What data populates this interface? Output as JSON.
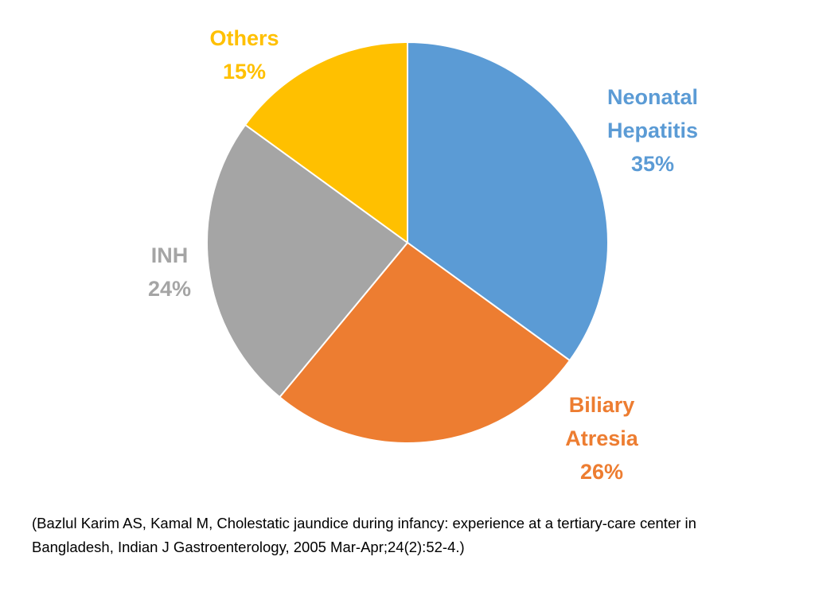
{
  "chart_data": {
    "type": "pie",
    "title": "",
    "slices": [
      {
        "category": "Neonatal Hepatitis",
        "label_lines": [
          "Neonatal",
          "Hepatitis"
        ],
        "value": 35,
        "value_label": "35%",
        "color": "#5b9bd5"
      },
      {
        "category": "Biliary Atresia",
        "label_lines": [
          "Biliary",
          "Atresia"
        ],
        "value": 26,
        "value_label": "26%",
        "color": "#ed7d31"
      },
      {
        "category": "INH",
        "label_lines": [
          "INH"
        ],
        "value": 24,
        "value_label": "24%",
        "color": "#a5a5a5"
      },
      {
        "category": "Others",
        "label_lines": [
          "Others"
        ],
        "value": 15,
        "value_label": "15%",
        "color": "#ffc000"
      }
    ],
    "start_angle": "12 o'clock",
    "direction": "clockwise",
    "legend": "none",
    "slice_border_color": "#ffffff"
  },
  "citation": {
    "line1": "(Bazlul Karim AS, Kamal M, Cholestatic jaundice during infancy: experience at a tertiary-care center in",
    "line2": "Bangladesh, Indian J Gastroenterology, 2005 Mar-Apr;24(2):52-4.)"
  }
}
